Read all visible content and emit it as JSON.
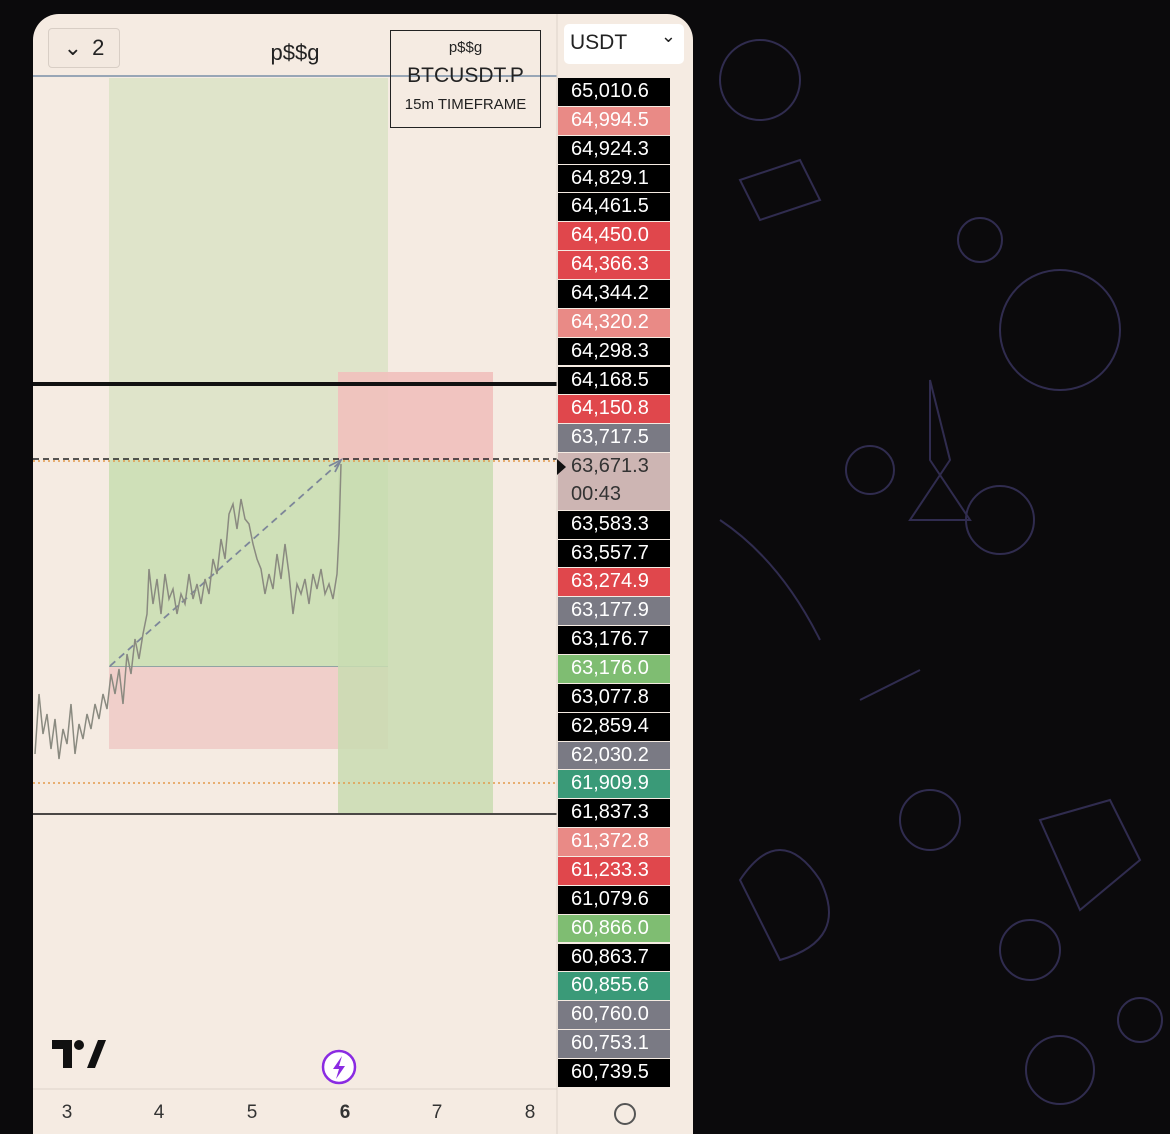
{
  "header": {
    "layout_button": "2",
    "title": "p$$g",
    "currency": "USDT"
  },
  "info_box": {
    "name": "p$$g",
    "symbol": "BTCUSDT.P",
    "timeframe": "15m TIMEFRAME"
  },
  "price_labels": [
    {
      "text": "65,010.6",
      "color": "#000000"
    },
    {
      "text": "64,994.5",
      "color": "#e98a86"
    },
    {
      "text": "64,924.3",
      "color": "#000000"
    },
    {
      "text": "64,829.1",
      "color": "#000000"
    },
    {
      "text": "64,461.5",
      "color": "#000000"
    },
    {
      "text": "64,450.0",
      "color": "#e0474c"
    },
    {
      "text": "64,366.3",
      "color": "#e0474c"
    },
    {
      "text": "64,344.2",
      "color": "#000000"
    },
    {
      "text": "64,320.2",
      "color": "#e98a86"
    },
    {
      "text": "64,298.3",
      "color": "#000000"
    },
    {
      "text": "64,168.5",
      "color": "#000000"
    },
    {
      "text": "64,150.8",
      "color": "#e0474c"
    },
    {
      "text": "63,717.5",
      "color": "#7a7a84"
    },
    {
      "text": "63,671.3",
      "countdown": "00:43",
      "color": "#cdb5b3"
    },
    {
      "text": "63,583.3",
      "color": "#000000"
    },
    {
      "text": "63,557.7",
      "color": "#000000"
    },
    {
      "text": "63,274.9",
      "color": "#e0474c"
    },
    {
      "text": "63,177.9",
      "color": "#7a7a84"
    },
    {
      "text": "63,176.7",
      "color": "#000000"
    },
    {
      "text": "63,176.0",
      "color": "#7fbd72"
    },
    {
      "text": "63,077.8",
      "color": "#000000"
    },
    {
      "text": "62,859.4",
      "color": "#000000"
    },
    {
      "text": "62,030.2",
      "color": "#7a7a84"
    },
    {
      "text": "61,909.9",
      "color": "#3a9a78"
    },
    {
      "text": "61,837.3",
      "color": "#000000"
    },
    {
      "text": "61,372.8",
      "color": "#e98a86"
    },
    {
      "text": "61,233.3",
      "color": "#e0474c"
    },
    {
      "text": "61,079.6",
      "color": "#000000"
    },
    {
      "text": "60,866.0",
      "color": "#7fbd72"
    },
    {
      "text": "60,863.7",
      "color": "#000000"
    },
    {
      "text": "60,855.6",
      "color": "#3a9a78"
    },
    {
      "text": "60,760.0",
      "color": "#7a7a84"
    },
    {
      "text": "60,753.1",
      "color": "#7a7a84"
    },
    {
      "text": "60,739.5",
      "color": "#000000"
    }
  ],
  "x_axis": {
    "labels": [
      "3",
      "4",
      "5",
      "6",
      "7",
      "8"
    ],
    "bold_label": "6"
  }
}
